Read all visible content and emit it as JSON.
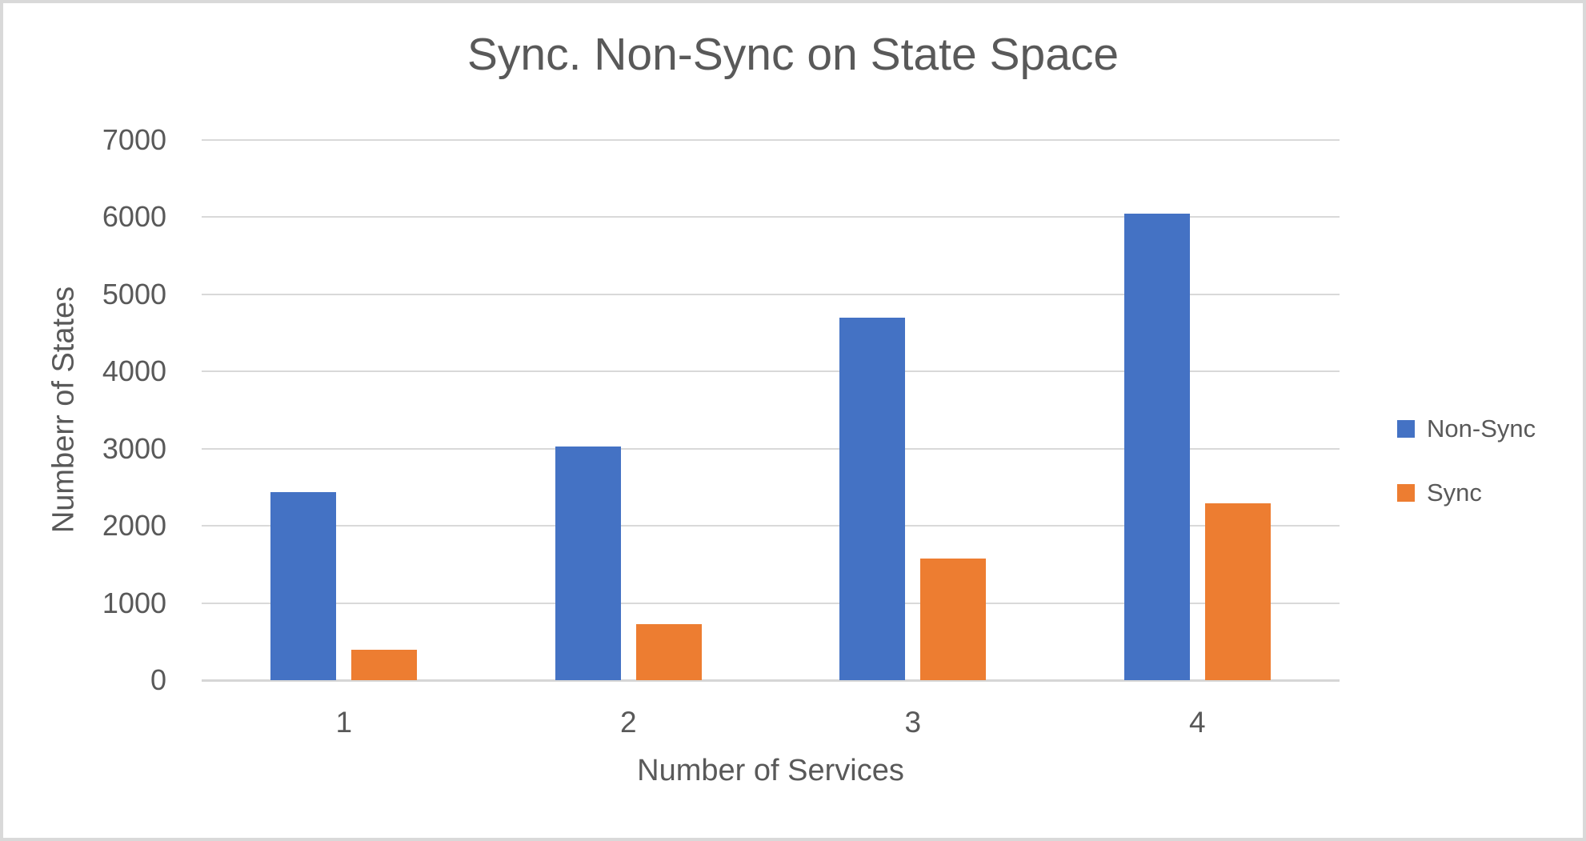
{
  "chart_data": {
    "type": "bar",
    "title": "Sync. Non-Sync on State Space",
    "xlabel": "Number of Services",
    "ylabel": "Numberr of States",
    "categories": [
      "1",
      "2",
      "3",
      "4"
    ],
    "series": [
      {
        "name": "Non-Sync",
        "color": "#4472C4",
        "values": [
          2440,
          3030,
          4700,
          6050
        ]
      },
      {
        "name": "Sync",
        "color": "#ED7D31",
        "values": [
          395,
          725,
          1575,
          2290
        ]
      }
    ],
    "ylim": [
      0,
      7000
    ],
    "yticks": [
      7000,
      6000,
      5000,
      4000,
      3000,
      2000,
      1000,
      0
    ],
    "grid": "horizontal",
    "legend_position": "right",
    "colors": {
      "text": "#595959",
      "gridline": "#D9D9D9",
      "axis_line": "#D6D6D6",
      "background": "#FFFFFF",
      "frame_border": "#D9D9D9"
    }
  }
}
